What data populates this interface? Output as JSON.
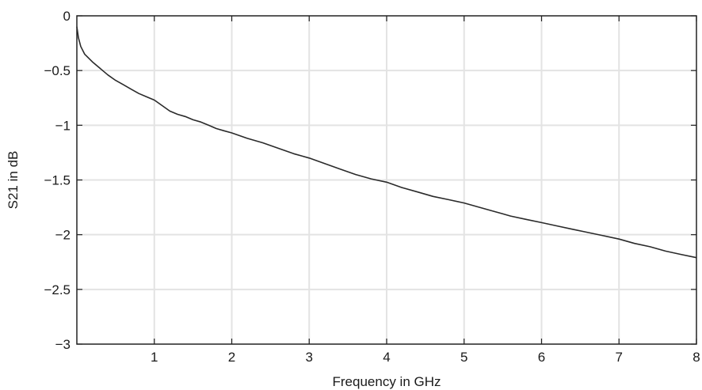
{
  "chart_data": {
    "type": "line",
    "title": "",
    "xlabel": "Frequency in GHz",
    "ylabel": "S21 in dB",
    "xlim": [
      0,
      8
    ],
    "ylim": [
      -3,
      0
    ],
    "xticks": [
      1,
      2,
      3,
      4,
      5,
      6,
      7,
      8
    ],
    "xtick_labels": [
      "1",
      "2",
      "3",
      "4",
      "5",
      "6",
      "7",
      "8"
    ],
    "yticks": [
      0,
      -0.5,
      -1,
      -1.5,
      -2,
      -2.5,
      -3
    ],
    "ytick_labels": [
      "0",
      "−0.5",
      "−1",
      "−1.5",
      "−2",
      "−2.5",
      "−3"
    ],
    "grid": true,
    "colors": {
      "line": "#2a2a2a",
      "grid": "#e3e3e3",
      "frame": "#222222"
    },
    "series": [
      {
        "x": [
          0.0,
          0.02,
          0.05,
          0.1,
          0.2,
          0.3,
          0.4,
          0.5,
          0.6,
          0.7,
          0.8,
          0.9,
          1.0,
          1.1,
          1.2,
          1.3,
          1.4,
          1.5,
          1.6,
          1.7,
          1.8,
          1.9,
          2.0,
          2.2,
          2.4,
          2.6,
          2.8,
          3.0,
          3.2,
          3.4,
          3.6,
          3.8,
          4.0,
          4.2,
          4.4,
          4.6,
          4.8,
          5.0,
          5.2,
          5.4,
          5.6,
          5.8,
          6.0,
          6.2,
          6.4,
          6.6,
          6.8,
          7.0,
          7.2,
          7.4,
          7.6,
          7.8,
          8.0
        ],
        "values": [
          -0.1,
          -0.2,
          -0.28,
          -0.35,
          -0.42,
          -0.48,
          -0.54,
          -0.59,
          -0.63,
          -0.67,
          -0.71,
          -0.74,
          -0.77,
          -0.82,
          -0.87,
          -0.9,
          -0.92,
          -0.95,
          -0.97,
          -1.0,
          -1.03,
          -1.05,
          -1.07,
          -1.12,
          -1.16,
          -1.21,
          -1.26,
          -1.3,
          -1.35,
          -1.4,
          -1.45,
          -1.49,
          -1.52,
          -1.57,
          -1.61,
          -1.65,
          -1.68,
          -1.71,
          -1.75,
          -1.79,
          -1.83,
          -1.86,
          -1.89,
          -1.92,
          -1.95,
          -1.98,
          -2.01,
          -2.04,
          -2.08,
          -2.11,
          -2.15,
          -2.18,
          -2.21
        ]
      }
    ]
  }
}
